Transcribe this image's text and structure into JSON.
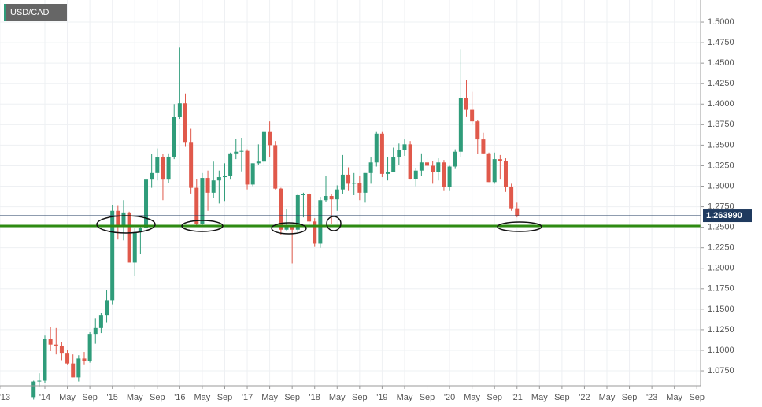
{
  "chart_data": {
    "type": "candlestick",
    "title": "USD/CAD",
    "x": [
      "2013-11",
      "2013-12",
      "2014-01",
      "2014-02",
      "2014-03",
      "2014-04",
      "2014-05",
      "2014-06",
      "2014-07",
      "2014-08",
      "2014-09",
      "2014-10",
      "2014-11",
      "2014-12",
      "2015-01",
      "2015-02",
      "2015-03",
      "2015-04",
      "2015-05",
      "2015-06",
      "2015-07",
      "2015-08",
      "2015-09",
      "2015-10",
      "2015-11",
      "2015-12",
      "2016-01",
      "2016-02",
      "2016-03",
      "2016-04",
      "2016-05",
      "2016-06",
      "2016-07",
      "2016-08",
      "2016-09",
      "2016-10",
      "2016-11",
      "2016-12",
      "2017-01",
      "2017-02",
      "2017-03",
      "2017-04",
      "2017-05",
      "2017-06",
      "2017-07",
      "2017-08",
      "2017-09",
      "2017-10",
      "2017-11",
      "2017-12",
      "2018-01",
      "2018-02",
      "2018-03",
      "2018-04",
      "2018-05",
      "2018-06",
      "2018-07",
      "2018-08",
      "2018-09",
      "2018-10",
      "2018-11",
      "2018-12",
      "2019-01",
      "2019-02",
      "2019-03",
      "2019-04",
      "2019-05",
      "2019-06",
      "2019-07",
      "2019-08",
      "2019-09",
      "2019-10",
      "2019-11",
      "2019-12",
      "2020-01",
      "2020-02",
      "2020-03",
      "2020-04",
      "2020-05",
      "2020-06",
      "2020-07",
      "2020-08",
      "2020-09",
      "2020-10",
      "2020-11",
      "2020-12",
      "2021-01"
    ],
    "open": [
      1.043,
      1.062,
      1.063,
      1.114,
      1.107,
      1.105,
      1.096,
      1.084,
      1.067,
      1.09,
      1.087,
      1.12,
      1.127,
      1.143,
      1.161,
      1.27,
      1.251,
      1.268,
      1.207,
      1.244,
      1.249,
      1.308,
      1.316,
      1.335,
      1.308,
      1.336,
      1.384,
      1.401,
      1.353,
      1.298,
      1.254,
      1.31,
      1.292,
      1.307,
      1.311,
      1.312,
      1.34,
      1.342,
      1.343,
      1.302,
      1.328,
      1.33,
      1.366,
      1.35,
      1.297,
      1.247,
      1.251,
      1.247,
      1.289,
      1.29,
      1.257,
      1.23,
      1.283,
      1.288,
      1.284,
      1.296,
      1.314,
      1.303,
      1.304,
      1.292,
      1.316,
      1.329,
      1.364,
      1.315,
      1.317,
      1.335,
      1.344,
      1.351,
      1.309,
      1.319,
      1.329,
      1.325,
      1.317,
      1.329,
      1.299,
      1.324,
      1.342,
      1.407,
      1.393,
      1.379,
      1.357,
      1.34,
      1.305,
      1.333,
      1.331,
      1.299,
      1.273
    ],
    "high": [
      1.063,
      1.072,
      1.118,
      1.128,
      1.127,
      1.11,
      1.1,
      1.095,
      1.094,
      1.098,
      1.122,
      1.139,
      1.146,
      1.173,
      1.277,
      1.276,
      1.283,
      1.269,
      1.249,
      1.25,
      1.31,
      1.339,
      1.346,
      1.339,
      1.34,
      1.4,
      1.469,
      1.413,
      1.37,
      1.309,
      1.316,
      1.319,
      1.33,
      1.319,
      1.328,
      1.341,
      1.358,
      1.359,
      1.345,
      1.328,
      1.351,
      1.368,
      1.379,
      1.355,
      1.298,
      1.272,
      1.252,
      1.291,
      1.292,
      1.292,
      1.261,
      1.287,
      1.312,
      1.29,
      1.301,
      1.338,
      1.323,
      1.316,
      1.313,
      1.316,
      1.335,
      1.366,
      1.366,
      1.336,
      1.347,
      1.352,
      1.357,
      1.355,
      1.322,
      1.34,
      1.334,
      1.331,
      1.334,
      1.332,
      1.325,
      1.345,
      1.467,
      1.43,
      1.415,
      1.381,
      1.365,
      1.341,
      1.341,
      1.338,
      1.334,
      1.303,
      1.28
    ],
    "low": [
      1.04,
      1.056,
      1.06,
      1.099,
      1.095,
      1.088,
      1.082,
      1.067,
      1.062,
      1.082,
      1.085,
      1.108,
      1.121,
      1.134,
      1.156,
      1.235,
      1.234,
      1.208,
      1.191,
      1.217,
      1.243,
      1.298,
      1.307,
      1.283,
      1.304,
      1.333,
      1.382,
      1.348,
      1.291,
      1.251,
      1.252,
      1.27,
      1.286,
      1.279,
      1.282,
      1.308,
      1.333,
      1.318,
      1.296,
      1.3,
      1.326,
      1.325,
      1.336,
      1.296,
      1.241,
      1.246,
      1.206,
      1.242,
      1.262,
      1.253,
      1.226,
      1.225,
      1.281,
      1.254,
      1.27,
      1.29,
      1.295,
      1.289,
      1.283,
      1.28,
      1.303,
      1.324,
      1.311,
      1.307,
      1.317,
      1.326,
      1.337,
      1.308,
      1.3,
      1.312,
      1.318,
      1.303,
      1.307,
      1.295,
      1.295,
      1.321,
      1.336,
      1.385,
      1.375,
      1.339,
      1.339,
      1.305,
      1.303,
      1.308,
      1.293,
      1.27,
      1.262
    ],
    "close": [
      1.062,
      1.063,
      1.114,
      1.107,
      1.105,
      1.096,
      1.084,
      1.067,
      1.09,
      1.087,
      1.12,
      1.127,
      1.143,
      1.161,
      1.27,
      1.251,
      1.268,
      1.207,
      1.244,
      1.249,
      1.308,
      1.316,
      1.335,
      1.308,
      1.336,
      1.384,
      1.401,
      1.353,
      1.298,
      1.254,
      1.31,
      1.292,
      1.307,
      1.311,
      1.312,
      1.34,
      1.342,
      1.343,
      1.302,
      1.328,
      1.33,
      1.366,
      1.35,
      1.297,
      1.247,
      1.251,
      1.247,
      1.289,
      1.29,
      1.257,
      1.23,
      1.283,
      1.288,
      1.284,
      1.296,
      1.314,
      1.303,
      1.304,
      1.292,
      1.316,
      1.329,
      1.364,
      1.315,
      1.317,
      1.335,
      1.344,
      1.351,
      1.309,
      1.319,
      1.329,
      1.325,
      1.317,
      1.329,
      1.299,
      1.324,
      1.342,
      1.407,
      1.393,
      1.379,
      1.357,
      1.34,
      1.305,
      1.333,
      1.331,
      1.299,
      1.273,
      1.264
    ],
    "up_color": "#2f9c7a",
    "down_color": "#e0594b",
    "ylim": [
      1.0568,
      1.5269
    ],
    "yticks": [
      {
        "value": 1.075,
        "label": "1.0750"
      },
      {
        "value": 1.1,
        "label": "1.1000"
      },
      {
        "value": 1.125,
        "label": "1.1250"
      },
      {
        "value": 1.15,
        "label": "1.1500"
      },
      {
        "value": 1.175,
        "label": "1.1750"
      },
      {
        "value": 1.2,
        "label": "1.2000"
      },
      {
        "value": 1.225,
        "label": "1.2250"
      },
      {
        "value": 1.25,
        "label": "1.2500"
      },
      {
        "value": 1.275,
        "label": "1.2750"
      },
      {
        "value": 1.3,
        "label": "1.3000"
      },
      {
        "value": 1.325,
        "label": "1.3250"
      },
      {
        "value": 1.35,
        "label": "1.3500"
      },
      {
        "value": 1.375,
        "label": "1.3750"
      },
      {
        "value": 1.4,
        "label": "1.4000"
      },
      {
        "value": 1.425,
        "label": "1.4250"
      },
      {
        "value": 1.45,
        "label": "1.4500"
      },
      {
        "value": 1.475,
        "label": "1.4750"
      },
      {
        "value": 1.5,
        "label": "1.5000"
      }
    ],
    "xticks": [
      {
        "value": "2013-05",
        "label": "'13"
      },
      {
        "value": "2014-01",
        "label": "'14"
      },
      {
        "value": "2014-05",
        "label": "May"
      },
      {
        "value": "2014-09",
        "label": "Sep"
      },
      {
        "value": "2015-01",
        "label": "'15"
      },
      {
        "value": "2015-05",
        "label": "May"
      },
      {
        "value": "2015-09",
        "label": "Sep"
      },
      {
        "value": "2016-01",
        "label": "'16"
      },
      {
        "value": "2016-05",
        "label": "May"
      },
      {
        "value": "2016-09",
        "label": "Sep"
      },
      {
        "value": "2017-01",
        "label": "'17"
      },
      {
        "value": "2017-05",
        "label": "May"
      },
      {
        "value": "2017-09",
        "label": "Sep"
      },
      {
        "value": "2018-01",
        "label": "'18"
      },
      {
        "value": "2018-05",
        "label": "May"
      },
      {
        "value": "2018-09",
        "label": "Sep"
      },
      {
        "value": "2019-01",
        "label": "'19"
      },
      {
        "value": "2019-05",
        "label": "May"
      },
      {
        "value": "2019-09",
        "label": "Sep"
      },
      {
        "value": "2020-01",
        "label": "'20"
      },
      {
        "value": "2020-05",
        "label": "May"
      },
      {
        "value": "2020-09",
        "label": "Sep"
      },
      {
        "value": "2021-01",
        "label": "'21"
      },
      {
        "value": "2021-05",
        "label": "May"
      },
      {
        "value": "2021-09",
        "label": "Sep"
      },
      {
        "value": "2022-01",
        "label": "'22"
      },
      {
        "value": "2022-05",
        "label": "May"
      },
      {
        "value": "2022-09",
        "label": "Sep"
      },
      {
        "value": "2023-01",
        "label": "'23"
      },
      {
        "value": "2023-05",
        "label": "May"
      },
      {
        "value": "2023-09",
        "label": "Sep"
      }
    ],
    "grid": true,
    "current_price": {
      "value": 1.26399,
      "label": "1.263990",
      "color": "#1f3a5f"
    },
    "support_level": {
      "value": 1.2515,
      "color": "#2e8b12"
    }
  }
}
